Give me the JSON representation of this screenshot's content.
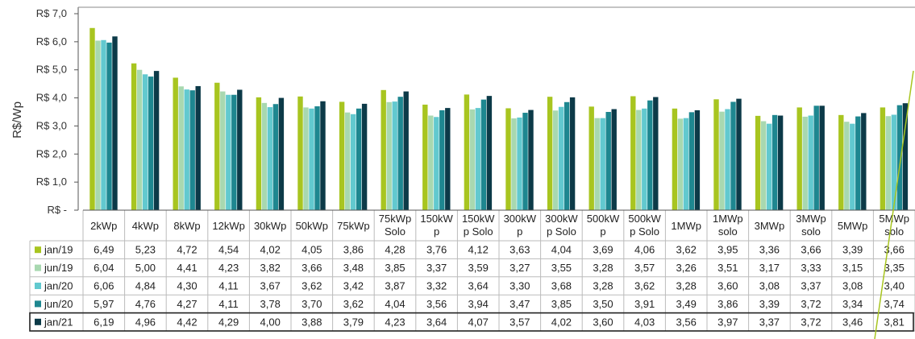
{
  "chart_data": {
    "type": "bar",
    "ylabel": "R$/Wp",
    "ylim": [
      0,
      7
    ],
    "y_ticks": [
      "R$ -",
      "R$ 1,0",
      "R$ 2,0",
      "R$ 3,0",
      "R$ 4,0",
      "R$ 5,0",
      "R$ 6,0",
      "R$ 7,0"
    ],
    "grid": false,
    "legend": "table-left",
    "categories": [
      "2kWp",
      "4kWp",
      "8kWp",
      "12kWp",
      "30kWp",
      "50kWp",
      "75kWp",
      "75kWp Solo",
      "150kWp",
      "150kWp Solo",
      "300kWp",
      "300kWp Solo",
      "500kWp",
      "500kWp Solo",
      "1MWp",
      "1MWp solo",
      "3MWp",
      "3MWp solo",
      "5MWp",
      "5MWp solo"
    ],
    "category_lines": [
      [
        "2kWp"
      ],
      [
        "4kWp"
      ],
      [
        "8kWp"
      ],
      [
        "12kWp"
      ],
      [
        "30kWp"
      ],
      [
        "50kWp"
      ],
      [
        "75kWp"
      ],
      [
        "75kWp",
        "Solo"
      ],
      [
        "150kW",
        "p"
      ],
      [
        "150kW",
        "p Solo"
      ],
      [
        "300kW",
        "p"
      ],
      [
        "300kW",
        "p Solo"
      ],
      [
        "500kW",
        "p"
      ],
      [
        "500kW",
        "p Solo"
      ],
      [
        "1MWp"
      ],
      [
        "1MWp",
        "solo"
      ],
      [
        "3MWp"
      ],
      [
        "3MWp",
        "solo"
      ],
      [
        "5MWp"
      ],
      [
        "5MWp",
        "solo"
      ]
    ],
    "series": [
      {
        "name": "jan/19",
        "color": "#a8c520",
        "values": [
          6.49,
          5.23,
          4.72,
          4.54,
          4.02,
          4.05,
          3.86,
          4.28,
          3.76,
          4.12,
          3.63,
          4.04,
          3.69,
          4.06,
          3.62,
          3.95,
          3.36,
          3.66,
          3.39,
          3.66
        ],
        "labels": [
          "6,49",
          "5,23",
          "4,72",
          "4,54",
          "4,02",
          "4,05",
          "3,86",
          "4,28",
          "3,76",
          "4,12",
          "3,63",
          "4,04",
          "3,69",
          "4,06",
          "3,62",
          "3,95",
          "3,36",
          "3,66",
          "3,39",
          "3,66"
        ]
      },
      {
        "name": "jun/19",
        "color": "#a8d8b0",
        "values": [
          6.04,
          5.0,
          4.41,
          4.23,
          3.82,
          3.66,
          3.48,
          3.85,
          3.37,
          3.59,
          3.27,
          3.55,
          3.28,
          3.57,
          3.26,
          3.51,
          3.17,
          3.33,
          3.15,
          3.35
        ],
        "labels": [
          "6,04",
          "5,00",
          "4,41",
          "4,23",
          "3,82",
          "3,66",
          "3,48",
          "3,85",
          "3,37",
          "3,59",
          "3,27",
          "3,55",
          "3,28",
          "3,57",
          "3,26",
          "3,51",
          "3,17",
          "3,33",
          "3,15",
          "3,35"
        ]
      },
      {
        "name": "jan/20",
        "color": "#62c9cf",
        "values": [
          6.06,
          4.84,
          4.3,
          4.11,
          3.67,
          3.62,
          3.42,
          3.87,
          3.32,
          3.64,
          3.3,
          3.68,
          3.28,
          3.62,
          3.28,
          3.6,
          3.08,
          3.37,
          3.08,
          3.4
        ],
        "labels": [
          "6,06",
          "4,84",
          "4,30",
          "4,11",
          "3,67",
          "3,62",
          "3,42",
          "3,87",
          "3,32",
          "3,64",
          "3,30",
          "3,68",
          "3,28",
          "3,62",
          "3,28",
          "3,60",
          "3,08",
          "3,37",
          "3,08",
          "3,40"
        ]
      },
      {
        "name": "jun/20",
        "color": "#1e8790",
        "values": [
          5.97,
          4.76,
          4.27,
          4.11,
          3.78,
          3.7,
          3.62,
          4.04,
          3.56,
          3.94,
          3.47,
          3.85,
          3.5,
          3.91,
          3.49,
          3.86,
          3.39,
          3.72,
          3.34,
          3.74
        ],
        "labels": [
          "5,97",
          "4,76",
          "4,27",
          "4,11",
          "3,78",
          "3,70",
          "3,62",
          "4,04",
          "3,56",
          "3,94",
          "3,47",
          "3,85",
          "3,50",
          "3,91",
          "3,49",
          "3,86",
          "3,39",
          "3,72",
          "3,34",
          "3,74"
        ]
      },
      {
        "name": "jan/21",
        "color": "#0c3a48",
        "values": [
          6.19,
          4.96,
          4.42,
          4.29,
          4.0,
          3.88,
          3.79,
          4.23,
          3.64,
          4.07,
          3.57,
          4.02,
          3.6,
          4.03,
          3.56,
          3.97,
          3.37,
          3.72,
          3.46,
          3.81
        ],
        "labels": [
          "6,19",
          "4,96",
          "4,42",
          "4,29",
          "4,00",
          "3,88",
          "3,79",
          "4,23",
          "3,64",
          "4,07",
          "3,57",
          "4,02",
          "3,60",
          "4,03",
          "3,56",
          "3,97",
          "3,37",
          "3,72",
          "3,46",
          "3,81"
        ]
      }
    ]
  }
}
